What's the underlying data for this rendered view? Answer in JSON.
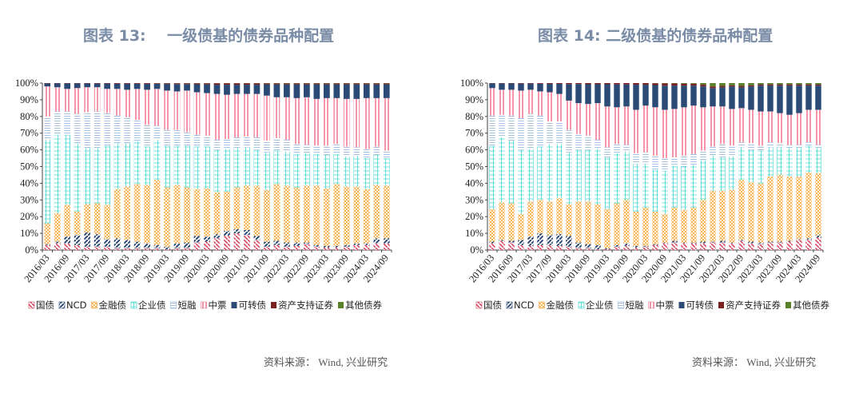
{
  "charts_meta": [
    {
      "title": "图表 13:    一级债基的债券品种配置",
      "source": "资料来源： Wind, 兴业研究"
    },
    {
      "title": "图表 14: 二级债基的债券品种配置",
      "source": "资料来源： Wind, 兴业研究"
    }
  ],
  "series_styles": [
    {
      "name": "国债",
      "color": "#d9485f",
      "pattern": "diagonal"
    },
    {
      "name": "NCD",
      "color": "#2d4a78",
      "pattern": "diagonal-thick"
    },
    {
      "name": "金融债",
      "color": "#f2a93b",
      "pattern": "crosshatch"
    },
    {
      "name": "企业债",
      "color": "#3fd6d0",
      "pattern": "grid"
    },
    {
      "name": "短融",
      "color": "#8fb0dc",
      "pattern": "horizontal"
    },
    {
      "name": "中票",
      "color": "#f47b92",
      "pattern": "vertical"
    },
    {
      "name": "可转债",
      "color": "#2b4a75",
      "pattern": "solid"
    },
    {
      "name": "资产支持证券",
      "color": "#7a1f22",
      "pattern": "solid"
    },
    {
      "name": "其他债券",
      "color": "#5b7f2b",
      "pattern": "solid"
    }
  ],
  "chart_data": [
    {
      "type": "bar",
      "stacked": true,
      "title": "图表 13:    一级债基的债券品种配置",
      "ylim": [
        0,
        100
      ],
      "yticks": [
        "0%",
        "10%",
        "20%",
        "30%",
        "40%",
        "50%",
        "60%",
        "70%",
        "80%",
        "90%",
        "100%"
      ],
      "xtick_labels": [
        "2016/03",
        "2016/09",
        "2017/03",
        "2017/09",
        "2018/03",
        "2018/09",
        "2019/03",
        "2019/09",
        "2020/03",
        "2020/09",
        "2021/03",
        "2021/09",
        "2022/03",
        "2022/09",
        "2023/03",
        "2023/09",
        "2024/03",
        "2024/09"
      ],
      "categories": [
        "2016/03",
        "2016/06",
        "2016/09",
        "2016/12",
        "2017/03",
        "2017/06",
        "2017/09",
        "2017/12",
        "2018/03",
        "2018/06",
        "2018/09",
        "2018/12",
        "2019/03",
        "2019/06",
        "2019/09",
        "2019/12",
        "2020/03",
        "2020/06",
        "2020/09",
        "2020/12",
        "2021/03",
        "2021/06",
        "2021/09",
        "2021/12",
        "2022/03",
        "2022/06",
        "2022/09",
        "2022/12",
        "2023/03",
        "2023/06",
        "2023/09",
        "2023/12",
        "2024/03",
        "2024/06",
        "2024/09"
      ],
      "legend_position": "bottom",
      "series": [
        {
          "name": "国债",
          "values": [
            3,
            4,
            4,
            3,
            2,
            2,
            2,
            1,
            1,
            1,
            1,
            1,
            0.5,
            1,
            1,
            4.5,
            5,
            7,
            8.5,
            10,
            9,
            6,
            2,
            3,
            2,
            2.5,
            3.5,
            2,
            1.5,
            1.5,
            2,
            3,
            3,
            4,
            4
          ]
        },
        {
          "name": "NCD",
          "values": [
            0.5,
            1,
            4,
            6,
            8.5,
            7.5,
            4.5,
            6,
            5,
            4,
            3,
            2,
            1.5,
            3,
            3.5,
            4,
            3,
            2.5,
            3,
            2.5,
            3,
            2.5,
            3,
            2.5,
            2.5,
            2,
            1,
            1,
            1,
            1,
            1,
            1,
            1,
            3,
            3
          ]
        },
        {
          "name": "金融债",
          "values": [
            12.5,
            17,
            19,
            14,
            17,
            18.5,
            20.5,
            29.5,
            32,
            34.5,
            35,
            39,
            35.5,
            35,
            33,
            28,
            29,
            25,
            23.5,
            25,
            26.5,
            30,
            31,
            34,
            34,
            33,
            34,
            35.5,
            34.5,
            37,
            35,
            34,
            32.5,
            32,
            31.5
          ]
        },
        {
          "name": "企业债",
          "values": [
            50,
            47,
            42,
            41,
            33.5,
            33,
            35.5,
            27.5,
            26,
            25.5,
            23,
            24,
            25,
            23.5,
            25,
            25.5,
            25,
            25.5,
            25.5,
            23.5,
            23,
            21.5,
            22.5,
            20,
            20.5,
            20,
            19.5,
            19,
            20,
            18,
            18,
            18.5,
            18.5,
            18,
            16.5
          ]
        },
        {
          "name": "短融",
          "values": [
            14,
            14,
            14,
            17.5,
            21.5,
            22,
            19.5,
            16.5,
            15.5,
            13,
            13,
            8.5,
            9.5,
            9.5,
            8,
            7,
            6.5,
            6,
            6,
            6.5,
            6.5,
            7.5,
            7,
            7.5,
            7,
            6,
            5,
            5,
            5.5,
            6,
            6,
            5,
            5.5,
            5,
            4.5
          ]
        },
        {
          "name": "中票",
          "values": [
            18,
            14.5,
            13.5,
            15.5,
            15,
            14.5,
            14.5,
            16,
            16.5,
            18.5,
            21,
            22,
            23.5,
            23,
            25,
            25.5,
            25.5,
            27.5,
            26.5,
            26,
            25.5,
            26,
            27,
            24.5,
            25.5,
            27.5,
            28.5,
            28,
            28.5,
            27.5,
            28.5,
            29,
            30.5,
            29,
            31.5
          ]
        },
        {
          "name": "可转债",
          "values": [
            1.8,
            2.3,
            3.3,
            2.8,
            2.3,
            2.2,
            3.2,
            3.1,
            3.6,
            3.1,
            3.6,
            3,
            4,
            4.4,
            3.9,
            4.8,
            5.2,
            5.5,
            6,
            5.5,
            5.5,
            5.5,
            6.7,
            7.7,
            7.7,
            8.2,
            7.7,
            8.7,
            8.2,
            8.2,
            8.7,
            8.7,
            8.2,
            8.2,
            8.2
          ]
        },
        {
          "name": "资产支持证券",
          "values": [
            0.2,
            0.2,
            0.2,
            0.2,
            0.2,
            0.3,
            0.3,
            0.4,
            0.4,
            0.4,
            0.4,
            0.4,
            0.4,
            0.5,
            0.5,
            0.6,
            0.7,
            0.9,
            0.9,
            0.9,
            0.9,
            0.9,
            0.6,
            0.6,
            0.6,
            0.6,
            0.6,
            0.6,
            0.6,
            0.6,
            0.6,
            0.6,
            0.6,
            0.6,
            0.6
          ]
        },
        {
          "name": "其他债券",
          "values": [
            0,
            0,
            0,
            0,
            0,
            0,
            0,
            0,
            0,
            0,
            0,
            0.1,
            0.1,
            0.1,
            0.1,
            0.1,
            0.1,
            0.1,
            0.1,
            0.1,
            0.1,
            0.1,
            0.2,
            0.2,
            0.2,
            0.2,
            0.2,
            0.2,
            0.2,
            0.2,
            0.2,
            0.2,
            0.2,
            0.2,
            0.2
          ]
        }
      ]
    },
    {
      "type": "bar",
      "stacked": true,
      "title": "图表 14: 二级债基的债券品种配置",
      "ylim": [
        0,
        100
      ],
      "yticks": [
        "0%",
        "10%",
        "20%",
        "30%",
        "40%",
        "50%",
        "60%",
        "70%",
        "80%",
        "90%",
        "100%"
      ],
      "xtick_labels": [
        "2016/03",
        "2016/09",
        "2017/03",
        "2017/09",
        "2018/03",
        "2018/09",
        "2019/03",
        "2019/09",
        "2020/03",
        "2020/09",
        "2021/03",
        "2021/09",
        "2022/03",
        "2022/09",
        "2023/03",
        "2023/09",
        "2024/03",
        "2024/09"
      ],
      "categories": [
        "2016/03",
        "2016/06",
        "2016/09",
        "2016/12",
        "2017/03",
        "2017/06",
        "2017/09",
        "2017/12",
        "2018/03",
        "2018/06",
        "2018/09",
        "2018/12",
        "2019/03",
        "2019/06",
        "2019/09",
        "2019/12",
        "2020/03",
        "2020/06",
        "2020/09",
        "2020/12",
        "2021/03",
        "2021/06",
        "2021/09",
        "2021/12",
        "2022/03",
        "2022/06",
        "2022/09",
        "2022/12",
        "2023/03",
        "2023/06",
        "2023/09",
        "2023/12",
        "2024/03",
        "2024/06",
        "2024/09"
      ],
      "legend_position": "bottom",
      "series": [
        {
          "name": "国债",
          "values": [
            4,
            5.5,
            4.5,
            3,
            2.5,
            3,
            3,
            2.5,
            2,
            1,
            1,
            0.5,
            0.5,
            2,
            2.5,
            1.5,
            2,
            3,
            4,
            4.5,
            4,
            4,
            4,
            4.5,
            4.5,
            4,
            5.5,
            4,
            3.5,
            4.5,
            4.5,
            5,
            6,
            6,
            7.5
          ]
        },
        {
          "name": "NCD",
          "values": [
            1,
            0.5,
            1,
            3,
            5.5,
            7,
            6,
            7,
            6.5,
            3.5,
            2.5,
            2.5,
            0.5,
            1,
            1.5,
            1,
            0.5,
            0.5,
            0.5,
            1,
            0.5,
            0.5,
            1,
            0.5,
            1,
            0.5,
            0.5,
            1,
            1,
            0.5,
            0.5,
            0.5,
            0.5,
            1,
            1.5
          ]
        },
        {
          "name": "金融债",
          "values": [
            19.5,
            22.5,
            22.5,
            15.5,
            21,
            20,
            20,
            21.5,
            19,
            24.5,
            25.5,
            24.5,
            23.5,
            25,
            26,
            20.5,
            23,
            19.5,
            17,
            20,
            19.5,
            21,
            25,
            30.5,
            30,
            31.5,
            36,
            35.5,
            35.5,
            39,
            40,
            38.5,
            37.5,
            39.5,
            37
          ]
        },
        {
          "name": "企业债",
          "values": [
            38,
            39,
            37.5,
            38.5,
            31.5,
            32,
            34.5,
            32.5,
            31,
            31,
            31,
            33,
            31,
            30,
            29,
            28.5,
            26,
            25,
            26,
            25,
            26,
            25.5,
            23.5,
            21,
            20,
            20,
            19.5,
            19.5,
            19.5,
            17.5,
            16.5,
            17,
            17,
            16,
            15
          ]
        },
        {
          "name": "短融",
          "values": [
            18,
            13.5,
            15,
            19,
            21,
            18.5,
            13.5,
            13.5,
            13.5,
            9.5,
            8.5,
            5.5,
            6,
            5.5,
            4,
            6.5,
            7,
            8.5,
            7.5,
            5,
            6.5,
            6.5,
            6,
            5.5,
            8,
            6.5,
            3,
            4,
            3,
            3,
            2.5,
            2,
            2,
            2,
            2
          ]
        },
        {
          "name": "中票",
          "values": [
            16.5,
            15,
            15.5,
            16.5,
            14.5,
            14.5,
            17.5,
            16.5,
            17.5,
            18.5,
            19,
            22,
            24.5,
            22,
            23,
            26,
            28,
            29,
            29,
            29,
            29,
            29,
            26,
            24,
            22.5,
            22,
            20.5,
            20,
            20.5,
            18.5,
            18,
            18,
            19,
            19.5,
            21
          ]
        },
        {
          "name": "可转债",
          "values": [
            2.8,
            3.8,
            3.8,
            4.2,
            3.7,
            4.6,
            5,
            6,
            9.9,
            11.4,
            11.8,
            11.3,
            13.3,
            13.7,
            13.2,
            15,
            12.5,
            13.3,
            14.5,
            14,
            13,
            12,
            12.5,
            11,
            11.5,
            13.5,
            12.5,
            14,
            15.5,
            15.5,
            16.5,
            17.5,
            16.5,
            14.5,
            14.5
          ]
        },
        {
          "name": "资产支持证券",
          "values": [
            0.2,
            0.2,
            0.2,
            0.3,
            0.3,
            0.4,
            0.5,
            0.5,
            0.6,
            0.6,
            0.7,
            0.7,
            0.7,
            0.8,
            0.8,
            1,
            1,
            1.1,
            1.3,
            1.3,
            1.2,
            1.1,
            1,
            1,
            0.8,
            0.7,
            0.8,
            0.7,
            0.7,
            0.7,
            0.7,
            0.7,
            0.7,
            0.7,
            0.7
          ]
        },
        {
          "name": "其他债券",
          "values": [
            0,
            0,
            0,
            0,
            0,
            0,
            0,
            0,
            0,
            0,
            0,
            0,
            0,
            0,
            0,
            0,
            0,
            0.1,
            0.2,
            0.2,
            0.3,
            0.4,
            1,
            2,
            1.7,
            1.3,
            1.7,
            1.3,
            0.8,
            0.8,
            0.8,
            0.8,
            0.8,
            0.8,
            0.8
          ]
        }
      ]
    }
  ]
}
